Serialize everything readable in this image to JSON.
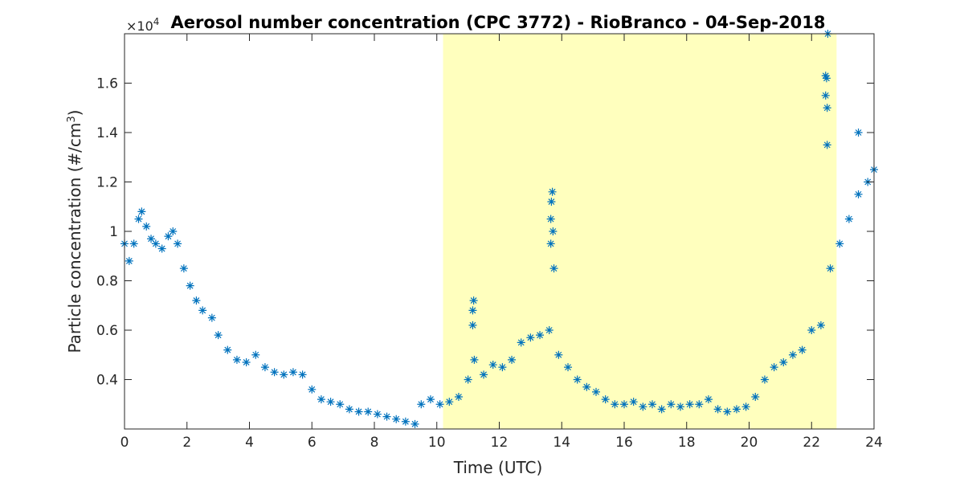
{
  "chart_data": {
    "type": "scatter",
    "title": "Aerosol number concentration (CPC 3772) - RioBranco - 04-Sep-2018",
    "xlabel": "Time (UTC)",
    "ylabel_main": "Particle concentration (#/cm",
    "ylabel_sup": "3",
    "ylabel_close": ")",
    "y_multiplier_base": "×10",
    "y_multiplier_exp": "4",
    "xlim": [
      0,
      24
    ],
    "ylim": [
      0.2,
      1.8
    ],
    "x_ticks": [
      0,
      2,
      4,
      6,
      8,
      10,
      12,
      14,
      16,
      18,
      20,
      22,
      24
    ],
    "y_ticks": [
      0.4,
      0.6,
      0.8,
      1.0,
      1.2,
      1.4,
      1.6
    ],
    "y_tick_labels": [
      "0.4",
      "0.6",
      "0.8",
      "1",
      "1.2",
      "1.4",
      "1.6"
    ],
    "marker": "asterisk",
    "series_color": "#0072bd",
    "highlight": {
      "x_start": 10.2,
      "x_end": 22.8,
      "color": "#ffffbe"
    },
    "grid": false,
    "series": [
      {
        "x": [
          0.0,
          0.15,
          0.3,
          0.45,
          0.55,
          0.7,
          0.85,
          1.0,
          1.2,
          1.4,
          1.55,
          1.7,
          1.9,
          2.1,
          2.3,
          2.5,
          2.8,
          3.0,
          3.3,
          3.6,
          3.9,
          4.2,
          4.5,
          4.8,
          5.1,
          5.4,
          5.7,
          6.0,
          6.3,
          6.6,
          6.9,
          7.2,
          7.5,
          7.8,
          8.1,
          8.4,
          8.7,
          9.0,
          9.3,
          9.5,
          9.8,
          10.1,
          10.4,
          10.7,
          11.0,
          11.2,
          11.5,
          11.8,
          12.1,
          12.4,
          12.7,
          13.0,
          13.3,
          13.6,
          13.9,
          14.2,
          14.5,
          14.8,
          15.1,
          15.4,
          15.7,
          16.0,
          16.3,
          16.6,
          16.9,
          17.2,
          17.5,
          17.8,
          18.1,
          18.4,
          18.7,
          19.0,
          19.3,
          19.6,
          19.9,
          20.2,
          20.5,
          20.8,
          21.1,
          21.4,
          21.7,
          22.0,
          22.3,
          22.6,
          22.9,
          23.2,
          23.5,
          23.8,
          24.0
        ],
        "y": [
          0.95,
          0.88,
          0.95,
          1.05,
          1.08,
          1.02,
          0.97,
          0.95,
          0.93,
          0.98,
          1.0,
          0.95,
          0.85,
          0.78,
          0.72,
          0.68,
          0.65,
          0.58,
          0.52,
          0.48,
          0.47,
          0.5,
          0.45,
          0.43,
          0.42,
          0.43,
          0.42,
          0.36,
          0.32,
          0.31,
          0.3,
          0.28,
          0.27,
          0.27,
          0.26,
          0.25,
          0.24,
          0.23,
          0.22,
          0.3,
          0.32,
          0.3,
          0.31,
          0.33,
          0.4,
          0.48,
          0.42,
          0.46,
          0.45,
          0.48,
          0.55,
          0.57,
          0.58,
          0.6,
          0.5,
          0.45,
          0.4,
          0.37,
          0.35,
          0.32,
          0.3,
          0.3,
          0.31,
          0.29,
          0.3,
          0.28,
          0.3,
          0.29,
          0.3,
          0.3,
          0.32,
          0.28,
          0.27,
          0.28,
          0.29,
          0.33,
          0.4,
          0.45,
          0.47,
          0.5,
          0.52,
          0.6,
          0.62,
          0.85,
          0.95,
          1.05,
          1.15,
          1.2,
          1.25
        ]
      },
      {
        "x": [
          11.15,
          11.15,
          11.18,
          13.65,
          13.65,
          13.67,
          13.7,
          13.72,
          13.75,
          22.45,
          22.45,
          22.48,
          22.5,
          22.5,
          22.52,
          23.5
        ],
        "y": [
          0.62,
          0.68,
          0.72,
          0.95,
          1.05,
          1.12,
          1.16,
          1.0,
          0.85,
          1.55,
          1.63,
          1.62,
          1.35,
          1.5,
          1.8,
          1.4
        ]
      }
    ]
  }
}
